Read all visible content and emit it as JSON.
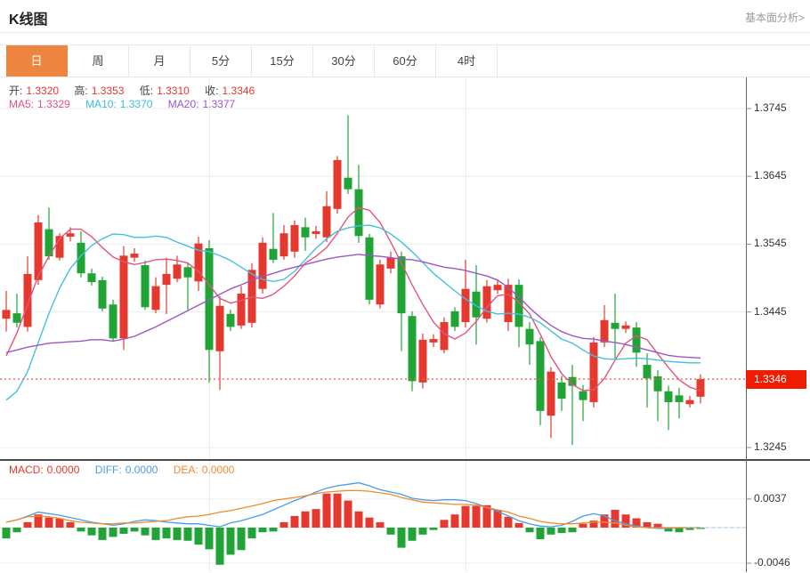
{
  "header": {
    "title": "K线图",
    "link": "基本面分析>"
  },
  "tabs": {
    "items": [
      "日",
      "周",
      "月",
      "5分",
      "15分",
      "30分",
      "60分",
      "4时"
    ],
    "active_index": 0
  },
  "info": {
    "open_label": "开:",
    "open": "1.3320",
    "high_label": "高:",
    "high": "1.3353",
    "low_label": "低:",
    "low": "1.3310",
    "close_label": "收:",
    "close": "1.3346",
    "ma5_label": "MA5:",
    "ma5": "1.3329",
    "ma10_label": "MA10:",
    "ma10": "1.3370",
    "ma20_label": "MA20:",
    "ma20": "1.3377"
  },
  "macd_info": {
    "macd_label": "MACD:",
    "macd": "0.0000",
    "diff_label": "DIFF:",
    "diff": "0.0000",
    "dea_label": "DEA:",
    "dea": "0.0000"
  },
  "colors": {
    "up": "#e5392f",
    "down": "#1fa435",
    "ma5": "#e5537e",
    "ma10": "#44c0dc",
    "ma20": "#9f55c8",
    "diff": "#4a9ce8",
    "dea": "#f08c2e",
    "tab_active": "#ed8540",
    "price_badge": "#ee1c00",
    "price_line": "#f4604f",
    "grid": "#ededed",
    "axis": "#666666",
    "zero_dash": "#9ec9e8"
  },
  "chart_data": [
    {
      "type": "candlestick",
      "title": "K线图 日线",
      "grid": true,
      "legend_position": "top-left",
      "ylim": [
        1.3227,
        1.3791
      ],
      "y_ticks": [
        {
          "label": "1.3745",
          "value": 1.3745
        },
        {
          "label": "1.3645",
          "value": 1.3645
        },
        {
          "label": "1.3545",
          "value": 1.3545
        },
        {
          "label": "1.3445",
          "value": 1.3445
        },
        {
          "label": "1.3245",
          "value": 1.3245
        }
      ],
      "last_price": 1.3346,
      "last_price_label": "1.3346",
      "ohlc": [
        [
          1.3435,
          1.3476,
          1.3416,
          1.3448
        ],
        [
          1.3443,
          1.3472,
          1.3422,
          1.3429
        ],
        [
          1.3423,
          1.3527,
          1.3416,
          1.3501
        ],
        [
          1.3492,
          1.3588,
          1.3485,
          1.3577
        ],
        [
          1.3567,
          1.3599,
          1.3522,
          1.3527
        ],
        [
          1.3525,
          1.3561,
          1.3521,
          1.3557
        ],
        [
          1.3556,
          1.357,
          1.3549,
          1.3561
        ],
        [
          1.3547,
          1.3564,
          1.3496,
          1.3502
        ],
        [
          1.3502,
          1.3509,
          1.3484,
          1.3489
        ],
        [
          1.3492,
          1.3497,
          1.3446,
          1.345
        ],
        [
          1.3456,
          1.3463,
          1.3402,
          1.3406
        ],
        [
          1.3406,
          1.3542,
          1.3389,
          1.3528
        ],
        [
          1.3525,
          1.3539,
          1.3519,
          1.3531
        ],
        [
          1.3514,
          1.3521,
          1.3448,
          1.3452
        ],
        [
          1.3448,
          1.3496,
          1.3443,
          1.3483
        ],
        [
          1.3485,
          1.3525,
          1.3442,
          1.3501
        ],
        [
          1.3494,
          1.3528,
          1.3489,
          1.3515
        ],
        [
          1.3511,
          1.3518,
          1.3448,
          1.3496
        ],
        [
          1.349,
          1.3556,
          1.3476,
          1.3546
        ],
        [
          1.3539,
          1.3551,
          1.3341,
          1.3389
        ],
        [
          1.3387,
          1.3468,
          1.333,
          1.3454
        ],
        [
          1.3442,
          1.3448,
          1.3417,
          1.3423
        ],
        [
          1.3425,
          1.3483,
          1.342,
          1.3472
        ],
        [
          1.3429,
          1.3517,
          1.3422,
          1.3507
        ],
        [
          1.3479,
          1.3555,
          1.3472,
          1.3547
        ],
        [
          1.3538,
          1.3591,
          1.3517,
          1.3522
        ],
        [
          1.3527,
          1.3573,
          1.3522,
          1.3561
        ],
        [
          1.3534,
          1.358,
          1.3525,
          1.3573
        ],
        [
          1.357,
          1.3584,
          1.3535,
          1.3555
        ],
        [
          1.356,
          1.3572,
          1.3553,
          1.3564
        ],
        [
          1.3555,
          1.3623,
          1.3548,
          1.3601
        ],
        [
          1.3597,
          1.3675,
          1.359,
          1.3669
        ],
        [
          1.3643,
          1.3735,
          1.3619,
          1.3626
        ],
        [
          1.3626,
          1.3662,
          1.3547,
          1.3557
        ],
        [
          1.3555,
          1.356,
          1.3456,
          1.3463
        ],
        [
          1.3456,
          1.3522,
          1.345,
          1.3515
        ],
        [
          1.3509,
          1.3534,
          1.3502,
          1.3525
        ],
        [
          1.3527,
          1.3534,
          1.3387,
          1.3443
        ],
        [
          1.3439,
          1.3446,
          1.3328,
          1.3343
        ],
        [
          1.3341,
          1.3413,
          1.3332,
          1.3404
        ],
        [
          1.34,
          1.3412,
          1.3393,
          1.3405
        ],
        [
          1.3389,
          1.3437,
          1.3384,
          1.343
        ],
        [
          1.3446,
          1.3452,
          1.3417,
          1.3423
        ],
        [
          1.343,
          1.3522,
          1.3422,
          1.3479
        ],
        [
          1.3475,
          1.3514,
          1.3397,
          1.3437
        ],
        [
          1.3435,
          1.3492,
          1.3429,
          1.3483
        ],
        [
          1.3477,
          1.3493,
          1.3472,
          1.3485
        ],
        [
          1.343,
          1.3494,
          1.3417,
          1.3485
        ],
        [
          1.3485,
          1.3493,
          1.3393,
          1.3423
        ],
        [
          1.342,
          1.343,
          1.3367,
          1.3397
        ],
        [
          1.3402,
          1.3408,
          1.3278,
          1.3299
        ],
        [
          1.3292,
          1.3364,
          1.3259,
          1.3357
        ],
        [
          1.3341,
          1.3351,
          1.3299,
          1.3317
        ],
        [
          1.3349,
          1.3367,
          1.3249,
          1.3336
        ],
        [
          1.3328,
          1.3337,
          1.3284,
          1.3315
        ],
        [
          1.3312,
          1.3408,
          1.3304,
          1.34
        ],
        [
          1.34,
          1.3455,
          1.3393,
          1.3433
        ],
        [
          1.3429,
          1.3472,
          1.3376,
          1.342
        ],
        [
          1.342,
          1.3431,
          1.3414,
          1.3425
        ],
        [
          1.3422,
          1.343,
          1.3364,
          1.3385
        ],
        [
          1.3367,
          1.3384,
          1.3304,
          1.3347
        ],
        [
          1.335,
          1.3359,
          1.3284,
          1.3328
        ],
        [
          1.3328,
          1.3336,
          1.3271,
          1.3312
        ],
        [
          1.3322,
          1.3333,
          1.3288,
          1.3312
        ],
        [
          1.3309,
          1.3321,
          1.3304,
          1.3315
        ],
        [
          1.332,
          1.3353,
          1.331,
          1.3346
        ]
      ],
      "series": [
        {
          "name": "MA5",
          "values": [
            1.338,
            1.3414,
            1.3456,
            1.3498,
            1.3527,
            1.3553,
            1.3567,
            1.3567,
            1.3556,
            1.354,
            1.3526,
            1.3519,
            1.3515,
            1.3518,
            1.3522,
            1.3523,
            1.3521,
            1.3517,
            1.3505,
            1.3485,
            1.3465,
            1.3458,
            1.3462,
            1.3467,
            1.3465,
            1.3471,
            1.3483,
            1.3498,
            1.3517,
            1.3527,
            1.354,
            1.3561,
            1.3585,
            1.3599,
            1.3595,
            1.3577,
            1.3548,
            1.3517,
            1.3485,
            1.3456,
            1.343,
            1.3413,
            1.3405,
            1.3414,
            1.3431,
            1.3452,
            1.3469,
            1.3471,
            1.3459,
            1.3442,
            1.3412,
            1.3379,
            1.3354,
            1.3338,
            1.3329,
            1.333,
            1.3347,
            1.3374,
            1.3399,
            1.341,
            1.3404,
            1.3383,
            1.3363,
            1.3345,
            1.3334,
            1.3329
          ]
        },
        {
          "name": "MA10",
          "values": [
            1.3315,
            1.3328,
            1.3357,
            1.34,
            1.3443,
            1.348,
            1.3509,
            1.3528,
            1.3543,
            1.3553,
            1.356,
            1.3559,
            1.3555,
            1.3555,
            1.3557,
            1.3555,
            1.3548,
            1.3542,
            1.3536,
            1.3534,
            1.3528,
            1.3521,
            1.3511,
            1.3501,
            1.3493,
            1.349,
            1.3493,
            1.3505,
            1.3522,
            1.3539,
            1.3553,
            1.3564,
            1.3569,
            1.3572,
            1.3573,
            1.3569,
            1.356,
            1.3548,
            1.3534,
            1.3518,
            1.3502,
            1.3489,
            1.3476,
            1.3464,
            1.3454,
            1.3446,
            1.3442,
            1.3443,
            1.3442,
            1.3437,
            1.3429,
            1.3417,
            1.3405,
            1.3399,
            1.3389,
            1.338,
            1.3376,
            1.3375,
            1.3376,
            1.3377,
            1.3376,
            1.3374,
            1.3372,
            1.3371,
            1.337,
            1.337
          ]
        },
        {
          "name": "MA20",
          "values": [
            1.3385,
            1.3389,
            1.3393,
            1.3396,
            1.3399,
            1.34,
            1.3401,
            1.3402,
            1.3404,
            1.3404,
            1.3402,
            1.3405,
            1.3409,
            1.3416,
            1.3423,
            1.3431,
            1.3439,
            1.3447,
            1.3455,
            1.3463,
            1.3471,
            1.3479,
            1.3485,
            1.3492,
            1.3497,
            1.3502,
            1.3507,
            1.3511,
            1.3515,
            1.3519,
            1.3523,
            1.3526,
            1.3528,
            1.353,
            1.3528,
            1.3527,
            1.3525,
            1.3523,
            1.3522,
            1.3519,
            1.3515,
            1.3511,
            1.3509,
            1.3506,
            1.3502,
            1.3498,
            1.3492,
            1.3481,
            1.3467,
            1.3451,
            1.3437,
            1.3425,
            1.3416,
            1.341,
            1.3406,
            1.3405,
            1.3402,
            1.34,
            1.3397,
            1.3393,
            1.3389,
            1.3385,
            1.3381,
            1.3379,
            1.3378,
            1.3377
          ]
        }
      ]
    },
    {
      "type": "bar",
      "title": "MACD",
      "grid": true,
      "ylim": [
        -0.0059,
        0.0087
      ],
      "y_ticks": [
        {
          "label": "0.0037",
          "value": 0.0037
        },
        {
          "label": "-0.0046",
          "value": -0.0046
        }
      ],
      "histogram": [
        -0.0014,
        -0.0006,
        0.0007,
        0.0017,
        0.0013,
        0.0012,
        0.0007,
        -0.0005,
        -0.001,
        -0.0016,
        -0.0012,
        -0.0008,
        -0.0005,
        -0.001,
        -0.0016,
        -0.0014,
        -0.0016,
        -0.0017,
        -0.0022,
        -0.0028,
        -0.0048,
        -0.0035,
        -0.0029,
        -0.0014,
        -0.0006,
        -0.0005,
        0.0007,
        0.0015,
        0.0021,
        0.0024,
        0.0044,
        0.0044,
        0.0035,
        0.0021,
        0.0013,
        0.0007,
        -0.0009,
        -0.0026,
        -0.0017,
        -0.0009,
        -0.0003,
        0.001,
        0.0017,
        0.0028,
        0.0028,
        0.0029,
        0.0023,
        0.0014,
        0.0006,
        -0.0006,
        -0.0015,
        -0.0009,
        -0.0007,
        -0.0006,
        0.0005,
        0.0009,
        0.0017,
        0.0023,
        0.0017,
        0.0012,
        0.0007,
        0.0005,
        -0.0005,
        -0.0006,
        -0.0003,
        -0.0001
      ],
      "series": [
        {
          "name": "DIFF",
          "values": [
            0.0007,
            0.001,
            0.0015,
            0.002,
            0.0018,
            0.0016,
            0.0013,
            0.001,
            0.0007,
            0.0005,
            0.0003,
            0.0005,
            0.0008,
            0.001,
            0.0009,
            0.0007,
            0.0006,
            0.0005,
            0.0005,
            0.0003,
            0.0001,
            0.0006,
            0.0009,
            0.0013,
            0.0017,
            0.0023,
            0.0029,
            0.0035,
            0.004,
            0.0046,
            0.0051,
            0.0054,
            0.0056,
            0.0058,
            0.0054,
            0.0049,
            0.0046,
            0.0043,
            0.0038,
            0.0036,
            0.0035,
            0.0036,
            0.0036,
            0.0035,
            0.0031,
            0.0026,
            0.0021,
            0.0015,
            0.0009,
            0.0005,
            0.0002,
            0.0001,
            0.0003,
            0.0008,
            0.0015,
            0.0018,
            0.0015,
            0.0009,
            0.0005,
            0.0002,
            0.0,
            -0.0001,
            -0.0001,
            0.0,
            0.0,
            0.0
          ]
        },
        {
          "name": "DEA",
          "values": [
            0.0007,
            0.001,
            0.0014,
            0.0015,
            0.0014,
            0.0012,
            0.0009,
            0.0007,
            0.0006,
            0.0005,
            0.0005,
            0.0006,
            0.0006,
            0.0007,
            0.0008,
            0.0009,
            0.0012,
            0.0014,
            0.0015,
            0.0017,
            0.002,
            0.0022,
            0.0025,
            0.0028,
            0.0031,
            0.0035,
            0.0037,
            0.0039,
            0.0041,
            0.0044,
            0.0046,
            0.0047,
            0.0048,
            0.0048,
            0.0047,
            0.0045,
            0.0043,
            0.0039,
            0.0036,
            0.0033,
            0.0032,
            0.0031,
            0.003,
            0.003,
            0.0029,
            0.0026,
            0.0023,
            0.002,
            0.0015,
            0.0012,
            0.0008,
            0.0006,
            0.0005,
            0.0005,
            0.0006,
            0.0007,
            0.0007,
            0.0006,
            0.0003,
            0.0001,
            0.0,
            0.0,
            0.0,
            0.0,
            0.0,
            0.0
          ]
        }
      ]
    }
  ]
}
